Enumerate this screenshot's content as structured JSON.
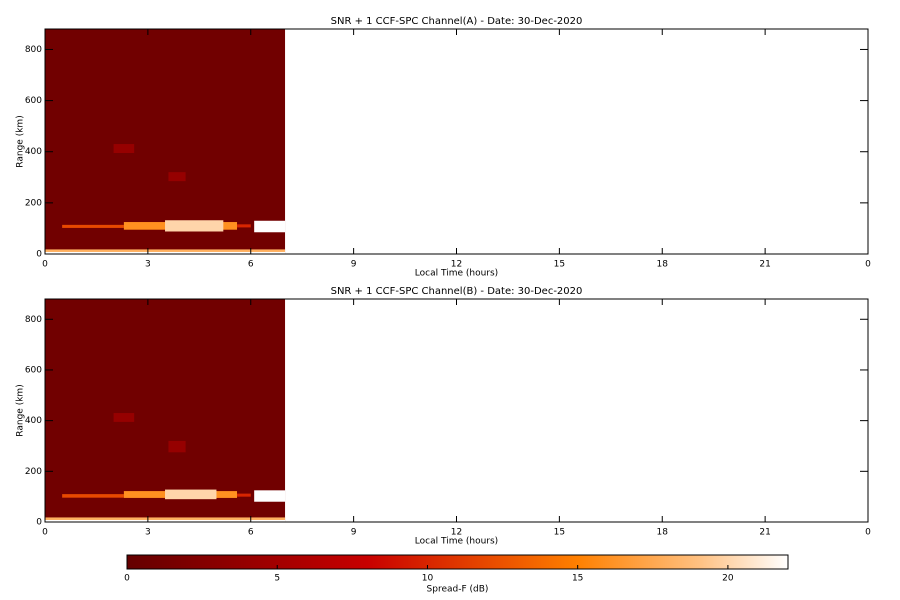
{
  "chart_data": [
    {
      "type": "heatmap",
      "title": "SNR + 1 CCF-SPC Channel(A) - Date: 30-Dec-2020",
      "x_label": "Local Time (hours)",
      "y_label": "Range (km)",
      "xlim": [
        0,
        24
      ],
      "ylim": [
        0,
        880
      ],
      "xticks": [
        0,
        3,
        6,
        9,
        12,
        15,
        18,
        21,
        {
          "value": 24,
          "label": "0"
        }
      ],
      "yticks": [
        0,
        200,
        400,
        600,
        800
      ],
      "regions": [
        {
          "x": [
            0,
            7
          ],
          "y": [
            0,
            880
          ],
          "value": 1
        },
        {
          "x": [
            0,
            7
          ],
          "y": [
            0,
            18
          ],
          "value": 18
        },
        {
          "x": [
            0,
            7
          ],
          "y": [
            0,
            8
          ],
          "value": 22
        },
        {
          "x": [
            2,
            2.6
          ],
          "y": [
            395,
            430
          ],
          "value": 4
        },
        {
          "x": [
            3.6,
            4.1
          ],
          "y": [
            285,
            320
          ],
          "value": 4
        },
        {
          "x": [
            0.5,
            2.3
          ],
          "y": [
            102,
            114
          ],
          "value": 12
        },
        {
          "x": [
            2.3,
            5.6
          ],
          "y": [
            95,
            125
          ],
          "value": 16
        },
        {
          "x": [
            3.5,
            5.2
          ],
          "y": [
            88,
            132
          ],
          "value": 20
        },
        {
          "x": [
            5.6,
            6
          ],
          "y": [
            104,
            116
          ],
          "value": 10
        },
        {
          "x": [
            6.1,
            7
          ],
          "y": [
            85,
            130
          ],
          "value": 22
        }
      ]
    },
    {
      "type": "heatmap",
      "title": "SNR + 1 CCF-SPC Channel(B) - Date: 30-Dec-2020",
      "x_label": "Local Time (hours)",
      "y_label": "Range (km)",
      "xlim": [
        0,
        24
      ],
      "ylim": [
        0,
        880
      ],
      "xticks": [
        0,
        3,
        6,
        9,
        12,
        15,
        18,
        21,
        {
          "value": 24,
          "label": "0"
        }
      ],
      "yticks": [
        0,
        200,
        400,
        600,
        800
      ],
      "regions": [
        {
          "x": [
            0,
            7
          ],
          "y": [
            0,
            880
          ],
          "value": 1
        },
        {
          "x": [
            0,
            7
          ],
          "y": [
            0,
            18
          ],
          "value": 18
        },
        {
          "x": [
            0,
            7
          ],
          "y": [
            0,
            8
          ],
          "value": 22
        },
        {
          "x": [
            2,
            2.6
          ],
          "y": [
            395,
            430
          ],
          "value": 4
        },
        {
          "x": [
            3.6,
            4.1
          ],
          "y": [
            275,
            320
          ],
          "value": 4
        },
        {
          "x": [
            0.5,
            2.3
          ],
          "y": [
            96,
            110
          ],
          "value": 12
        },
        {
          "x": [
            2.3,
            5.6
          ],
          "y": [
            95,
            122
          ],
          "value": 16
        },
        {
          "x": [
            3.5,
            5
          ],
          "y": [
            90,
            128
          ],
          "value": 20
        },
        {
          "x": [
            5.6,
            6
          ],
          "y": [
            100,
            112
          ],
          "value": 10
        },
        {
          "x": [
            6.1,
            7
          ],
          "y": [
            80,
            125
          ],
          "value": 22
        }
      ]
    },
    {
      "type": "colorbar",
      "x_label": "Spread-F (dB)",
      "xlim": [
        0,
        22
      ],
      "xticks": [
        0,
        5,
        10,
        15,
        20
      ],
      "colorscale": [
        [
          0,
          "#640000"
        ],
        [
          8,
          "#c80000"
        ],
        [
          15,
          "#ff8000"
        ],
        [
          19,
          "#ffc080"
        ],
        [
          22,
          "#ffffff"
        ]
      ]
    }
  ]
}
